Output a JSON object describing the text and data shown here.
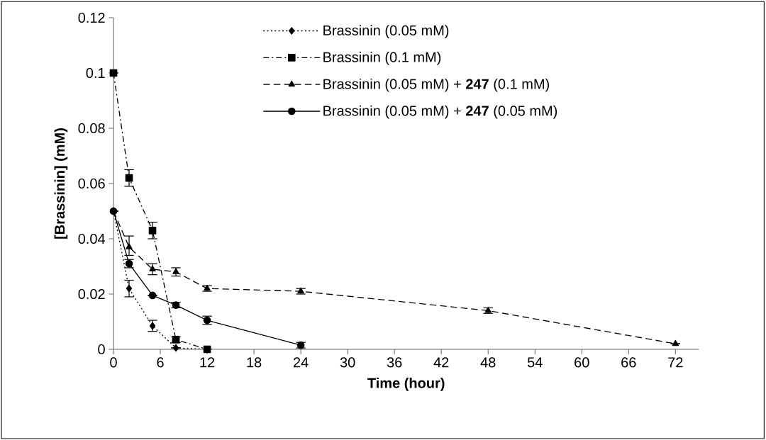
{
  "chart_data": {
    "type": "line",
    "xlabel": "Time (hour)",
    "ylabel": "[Brassinin] (mM)",
    "xlim": [
      0,
      75
    ],
    "xticks": [
      0,
      6,
      12,
      18,
      24,
      30,
      36,
      42,
      48,
      54,
      60,
      66,
      72
    ],
    "ylim": [
      0,
      0.12
    ],
    "yticks": [
      0,
      0.02,
      0.04,
      0.06,
      0.08,
      0.1,
      0.12
    ],
    "grid": false,
    "legend": "top",
    "series": [
      {
        "name": "Brassinin (0.05 mM)",
        "color": "#000000",
        "marker": "diamond",
        "line_style": "dotted",
        "x": [
          0,
          2,
          5,
          8,
          12
        ],
        "values": [
          0.05,
          0.022,
          0.0085,
          0.0005,
          0
        ],
        "errors": [
          null,
          0.003,
          0.002,
          null,
          null
        ]
      },
      {
        "name": "Brassinin (0.1 mM)",
        "color": "#000000",
        "marker": "square",
        "line_style": "dashdot",
        "x": [
          0,
          2,
          5,
          8,
          12
        ],
        "values": [
          0.1,
          0.062,
          0.043,
          0.0035,
          0
        ],
        "errors": [
          null,
          0.003,
          0.003,
          0.001,
          null
        ]
      },
      {
        "name": "Brassinin (0.05 mM) + **247** (0.1 mM)",
        "color": "#000000",
        "marker": "triangle",
        "line_style": "dashed",
        "x": [
          0,
          2,
          5,
          8,
          12,
          24,
          48,
          72
        ],
        "values": [
          0.05,
          0.037,
          0.029,
          0.028,
          0.022,
          0.021,
          0.014,
          0.002
        ],
        "errors": [
          null,
          [
            0.034,
            0.041
          ],
          0.002,
          0.0015,
          0.001,
          0.001,
          0.001,
          null
        ]
      },
      {
        "name": "Brassinin (0.05 mM) + **247** (0.05 mM)",
        "color": "#000000",
        "marker": "circle",
        "line_style": "solid",
        "x": [
          0,
          2,
          5,
          8,
          12,
          24
        ],
        "values": [
          0.05,
          0.031,
          0.0195,
          0.016,
          0.0105,
          0.0015
        ],
        "errors": [
          null,
          0.0015,
          null,
          0.001,
          0.0015,
          0.001
        ]
      }
    ]
  }
}
